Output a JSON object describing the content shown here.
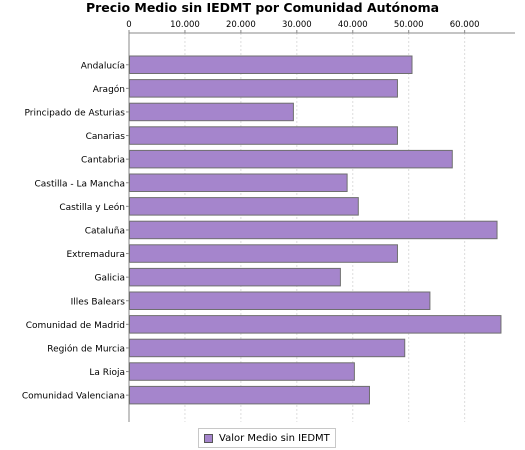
{
  "chart_data": {
    "type": "bar",
    "orientation": "horizontal",
    "title": "Precio Medio sin IEDMT por Comunidad Autónoma",
    "xlabel": "",
    "ylabel": "",
    "categories": [
      "Andalucía",
      "Aragón",
      "Principado de Asturias",
      "Canarias",
      "Cantabria",
      "Castilla - La Mancha",
      "Castilla y León",
      "Cataluña",
      "Extremadura",
      "Galicia",
      "Illes Balears",
      "Comunidad de Madrid",
      "Región de Murcia",
      "La Rioja",
      "Comunidad Valenciana"
    ],
    "series": [
      {
        "name": "Valor Medio sin IEDMT",
        "color": "#a585cc",
        "values": [
          50500,
          47900,
          29300,
          47900,
          57700,
          38900,
          40900,
          65700,
          47900,
          37700,
          53700,
          66400,
          49200,
          40200,
          42900
        ]
      }
    ],
    "xlim": [
      0,
      69000
    ],
    "ticks": [
      0,
      10000,
      20000,
      30000,
      40000,
      50000,
      60000
    ],
    "tick_labels": [
      "0",
      "10.000",
      "20.000",
      "30.000",
      "40.000",
      "50.000",
      "60.000"
    ],
    "axis_position": "top",
    "grid": true,
    "legend": "bottom"
  }
}
